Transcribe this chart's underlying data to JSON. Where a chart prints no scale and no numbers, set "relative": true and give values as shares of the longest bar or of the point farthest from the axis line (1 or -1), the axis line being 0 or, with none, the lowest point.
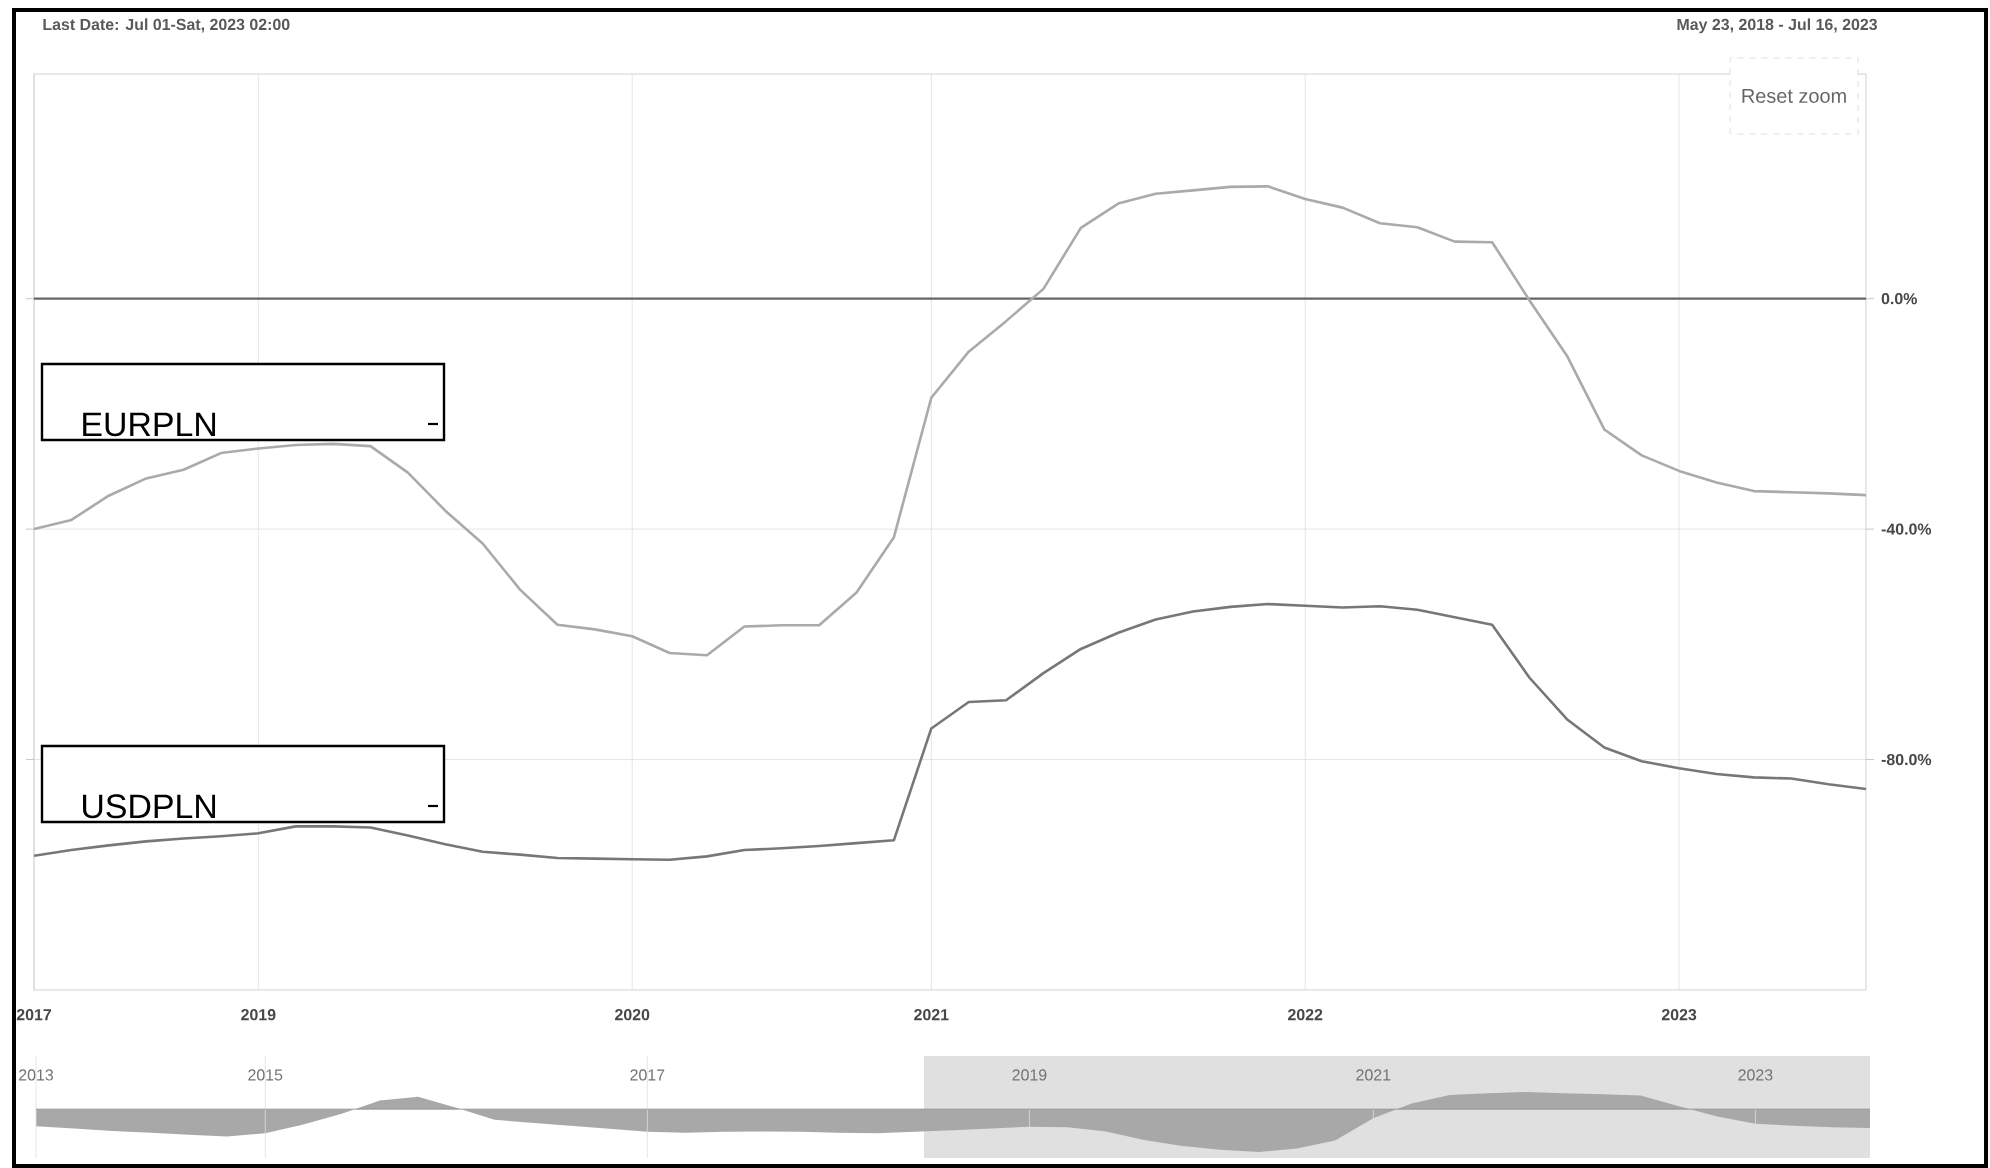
{
  "chart_data": [
    {
      "type": "line",
      "annotations": [
        "Last Date: Jul 01-Sat, 2023 02:00",
        "May 23, 2018 - Jul 16, 2023",
        "Reset zoom"
      ],
      "categories": [
        "2017",
        null,
        null,
        null,
        null,
        null,
        "2019",
        null,
        null,
        null,
        null,
        null,
        null,
        null,
        null,
        null,
        "2020",
        null,
        null,
        null,
        null,
        null,
        null,
        null,
        "2021",
        null,
        null,
        null,
        null,
        null,
        null,
        null,
        null,
        null,
        "2022",
        null,
        null,
        null,
        null,
        null,
        null,
        null,
        null,
        null,
        "2023",
        null,
        null,
        null,
        null,
        null
      ],
      "series": [
        {
          "name": "EURPLN",
          "color": "#aaaaaa",
          "values": [
            -40.0,
            -38.4,
            -34.2,
            -31.2,
            -29.7,
            -26.8,
            -26.0,
            -25.4,
            -25.2,
            -25.6,
            -30.2,
            -36.8,
            -42.5,
            -50.5,
            -56.6,
            -57.4,
            -58.6,
            -61.5,
            -61.9,
            -56.9,
            -56.7,
            -56.7,
            -51.0,
            -41.4,
            -17.2,
            -9.2,
            -3.9,
            1.7,
            12.3,
            16.5,
            18.2,
            18.8,
            19.4,
            19.5,
            17.3,
            15.8,
            13.1,
            12.4,
            9.9,
            9.8,
            -0.3,
            -9.9,
            -22.7,
            -27.2,
            -29.9,
            -31.9,
            -33.4,
            -33.6,
            -33.8,
            -34.1
          ]
        },
        {
          "name": "USDPLN",
          "color": "#777777",
          "values": [
            -96.7,
            -95.7,
            -94.9,
            -94.2,
            -93.7,
            -93.3,
            -92.8,
            -91.6,
            -91.6,
            -91.8,
            -93.2,
            -94.7,
            -96.0,
            -96.5,
            -97.1,
            -97.2,
            -97.3,
            -97.4,
            -96.8,
            -95.7,
            -95.4,
            -95.0,
            -94.5,
            -94.0,
            -74.6,
            -70.0,
            -69.7,
            -65.0,
            -60.8,
            -58.0,
            -55.7,
            -54.3,
            -53.5,
            -53.0,
            -53.3,
            -53.6,
            -53.4,
            -54.0,
            -55.3,
            -56.6,
            -65.8,
            -73.0,
            -77.9,
            -80.3,
            -81.5,
            -82.5,
            -83.1,
            -83.3,
            -84.3,
            -85.1
          ]
        }
      ],
      "ylim": [
        -120,
        39
      ],
      "yticks": [
        {
          "value": -80,
          "label": "-80.0%"
        },
        {
          "value": -40,
          "label": "-40.0%"
        },
        {
          "value": 0,
          "label": "0.0%"
        }
      ],
      "ref_lines": [
        {
          "axis": "y",
          "value": 0,
          "color": "#666666"
        }
      ],
      "grid": true
    },
    {
      "type": "area",
      "relative": true,
      "color": "#a8a8a8",
      "categories": [
        "2013",
        null,
        null,
        null,
        null,
        null,
        "2015",
        null,
        null,
        null,
        null,
        null,
        null,
        null,
        null,
        null,
        "2017",
        null,
        null,
        null,
        null,
        null,
        null,
        null,
        null,
        null,
        "2019",
        null,
        null,
        null,
        null,
        null,
        null,
        null,
        null,
        "2021",
        null,
        null,
        null,
        null,
        null,
        null,
        null,
        null,
        null,
        "2023",
        null,
        null,
        null
      ],
      "values": [
        -0.4,
        -0.45,
        -0.51,
        -0.55,
        -0.6,
        -0.64,
        -0.56,
        -0.36,
        -0.11,
        0.2,
        0.29,
        0.03,
        -0.25,
        -0.32,
        -0.39,
        -0.46,
        -0.53,
        -0.55,
        -0.53,
        -0.52,
        -0.53,
        -0.55,
        -0.56,
        -0.53,
        -0.49,
        -0.45,
        -0.41,
        -0.42,
        -0.52,
        -0.72,
        -0.86,
        -0.95,
        -1,
        -0.92,
        -0.73,
        -0.21,
        0.13,
        0.33,
        0.37,
        0.4,
        0.37,
        0.35,
        0.32,
        0.07,
        -0.17,
        -0.34,
        -0.39,
        -0.42,
        -0.44
      ],
      "grid": "x",
      "tick_labels": "x"
    }
  ]
}
